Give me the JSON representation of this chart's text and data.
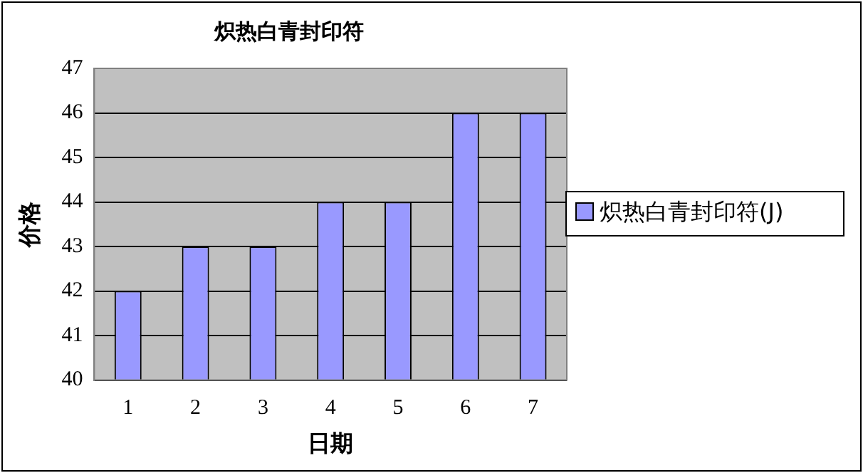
{
  "chart_data": {
    "type": "bar",
    "title": "炽热白青封印符",
    "xlabel": "日期",
    "ylabel": "价格",
    "categories": [
      "1",
      "2",
      "3",
      "4",
      "5",
      "6",
      "7"
    ],
    "series": [
      {
        "name": "炽热白青封印符(J)",
        "color": "#9999ff",
        "values": [
          42,
          43,
          43,
          44,
          44,
          46,
          46
        ]
      }
    ],
    "ylim": [
      40,
      47
    ],
    "yticks": [
      40,
      41,
      42,
      43,
      44,
      45,
      46,
      47
    ],
    "grid": "y",
    "legend": "right"
  }
}
